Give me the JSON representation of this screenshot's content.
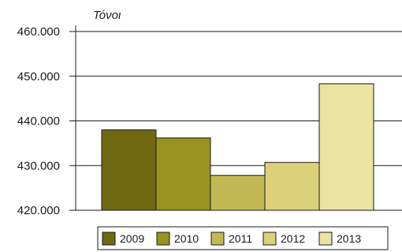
{
  "chart_data": {
    "type": "bar",
    "unit_label": "Τόνοι",
    "categories": [
      "2009",
      "2010",
      "2011",
      "2012",
      "2013"
    ],
    "values": [
      438000,
      436200,
      427800,
      430700,
      448300
    ],
    "colors": [
      "#6e6810",
      "#9a9220",
      "#c3b954",
      "#ddd07a",
      "#ebe3a0"
    ],
    "ylim": [
      420000,
      460000
    ],
    "yticks": [
      420000,
      430000,
      440000,
      450000,
      460000
    ],
    "ytick_labels": [
      "420.000",
      "430.000",
      "440.000",
      "450.000",
      "460.000"
    ],
    "grid": true,
    "legend": "bottom"
  }
}
